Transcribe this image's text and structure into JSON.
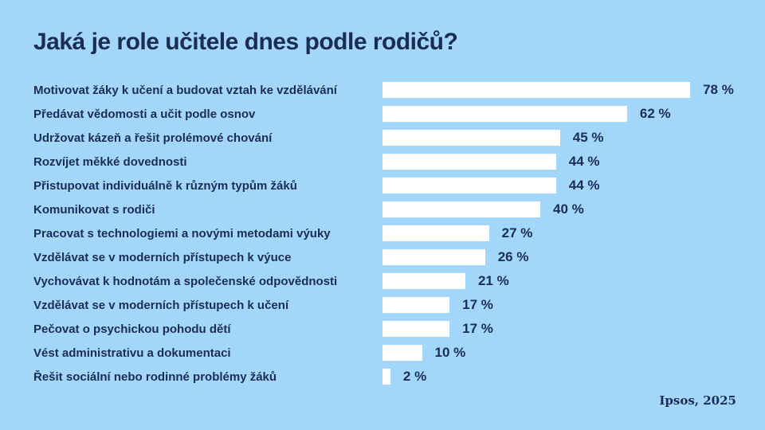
{
  "title": "Jaká je role učitele dnes podle rodičů?",
  "source": "Ipsos, 2025",
  "colors": {
    "background": "#a3d6fb",
    "bar": "#ffffff",
    "text": "#1b2d50"
  },
  "chart_data": {
    "type": "bar",
    "orientation": "horizontal",
    "title": "Jaká je role učitele dnes podle rodičů?",
    "categories": [
      "Motivovat žáky k učení a budovat vztah ke vzdělávání",
      "Předávat vědomosti a učit podle osnov",
      "Udržovat kázeň a řešit prolémové chování",
      "Rozvíjet měkké dovednosti",
      "Přistupovat individuálně k různým typům žáků",
      "Komunikovat s rodiči",
      "Pracovat s technologiemi a novými metodami výuky",
      "Vzdělávat se v moderních přístupech k výuce",
      "Vychovávat k hodnotám a společenské odpovědnosti",
      "Vzdělávat se v moderních přístupech k učení",
      "Pečovat o psychickou pohodu dětí",
      "Vést administrativu a dokumentaci",
      "Řešit sociální nebo rodinné problémy žáků"
    ],
    "values": [
      78,
      62,
      45,
      44,
      44,
      40,
      27,
      26,
      21,
      17,
      17,
      10,
      2
    ],
    "value_labels": [
      "78 %",
      "62 %",
      "45 %",
      "44 %",
      "44 %",
      "40 %",
      "27 %",
      "26 %",
      "21 %",
      "17 %",
      "17 %",
      "10 %",
      "2 %"
    ],
    "value_suffix": " %",
    "xlim": [
      0,
      100
    ],
    "grid": false,
    "legend": false,
    "bar_color": "#ffffff",
    "label_color": "#1b2d50"
  }
}
